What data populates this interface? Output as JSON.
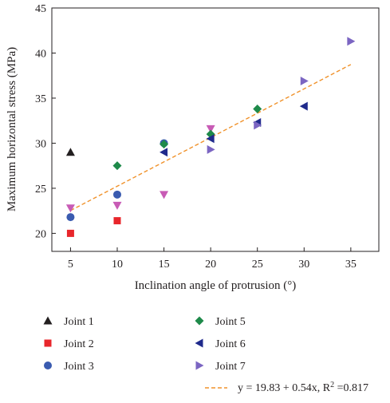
{
  "chart_data": {
    "type": "scatter",
    "title": "",
    "xlabel": "Inclination angle of protrusion (°)",
    "ylabel": "Maximum horizontal stress (MPa)",
    "xlim": [
      3,
      38
    ],
    "ylim": [
      18,
      45
    ],
    "xticks": [
      5,
      10,
      15,
      20,
      25,
      30,
      35
    ],
    "yticks": [
      20,
      25,
      30,
      35,
      40,
      45
    ],
    "grid": false,
    "legend_position": "below",
    "series": [
      {
        "name": "Joint 1",
        "marker": "triangle-up",
        "color": "#231f20",
        "points": [
          [
            5,
            29.0
          ]
        ]
      },
      {
        "name": "Joint 2",
        "marker": "square",
        "color": "#e8262b",
        "points": [
          [
            5,
            20.0
          ],
          [
            10,
            21.4
          ]
        ]
      },
      {
        "name": "Joint 3",
        "marker": "circle",
        "color": "#3a5bb0",
        "points": [
          [
            5,
            21.8
          ],
          [
            10,
            24.3
          ],
          [
            15,
            30.0
          ]
        ]
      },
      {
        "name": "Joint 4",
        "marker": "triangle-down",
        "color": "#c85bb5",
        "points": [
          [
            5,
            22.8
          ],
          [
            10,
            23.1
          ],
          [
            15,
            24.3
          ],
          [
            20,
            31.6
          ]
        ]
      },
      {
        "name": "Joint 5",
        "marker": "diamond",
        "color": "#1e8a4a",
        "points": [
          [
            10,
            27.5
          ],
          [
            15,
            29.9
          ],
          [
            20,
            31.0
          ],
          [
            25,
            33.8
          ]
        ]
      },
      {
        "name": "Joint 6",
        "marker": "triangle-left",
        "color": "#1f2a8c",
        "points": [
          [
            15,
            29.0
          ],
          [
            20,
            30.5
          ],
          [
            25,
            32.3
          ],
          [
            30,
            34.1
          ]
        ]
      },
      {
        "name": "Joint 7",
        "marker": "triangle-right",
        "color": "#7b65c2",
        "points": [
          [
            20,
            29.3
          ],
          [
            25,
            32.0
          ],
          [
            30,
            36.9
          ],
          [
            35,
            41.3
          ]
        ]
      }
    ],
    "fit": {
      "label": "y = 19.83 + 0.54x, R",
      "label_sup": "2",
      "label_tail": " =0.817",
      "intercept": 19.83,
      "slope": 0.54,
      "x_range": [
        5,
        35
      ],
      "color": "#f0922b",
      "style": "dashed"
    }
  }
}
